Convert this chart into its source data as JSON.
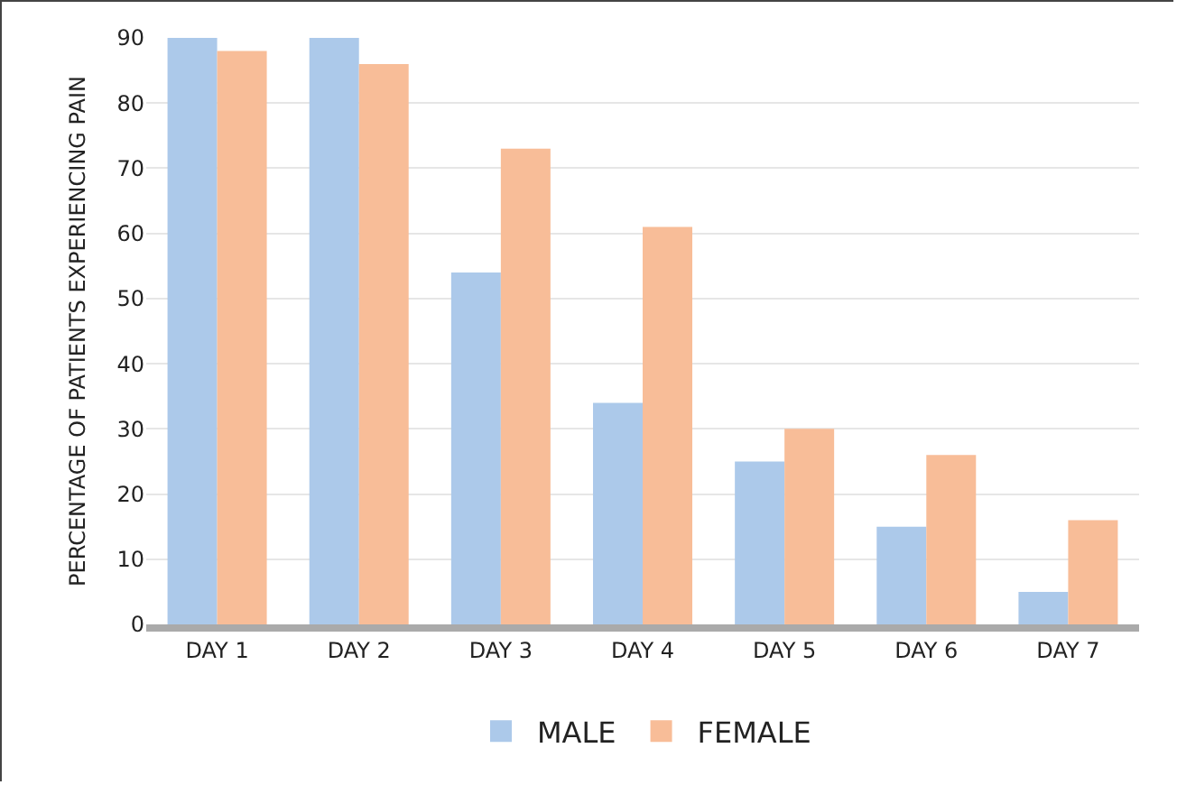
{
  "chart_data": {
    "type": "bar",
    "ylabel": "PERCENTAGE OF PATIENTS EXPERIENCING PAIN",
    "categories": [
      "DAY 1",
      "DAY 2",
      "DAY 3",
      "DAY 4",
      "DAY 5",
      "DAY 6",
      "DAY 7"
    ],
    "series": [
      {
        "name": "MALE",
        "color": "#acc9ea",
        "values": [
          90,
          90,
          54,
          34,
          25,
          15,
          5
        ]
      },
      {
        "name": "FEMALE",
        "color": "#f8bd98",
        "values": [
          88,
          86,
          73,
          61,
          30,
          26,
          16
        ]
      }
    ],
    "ylim": [
      0,
      90
    ],
    "yticks": [
      0,
      10,
      20,
      30,
      40,
      50,
      60,
      70,
      80,
      90
    ],
    "grid": "y",
    "legend": "bottom"
  }
}
